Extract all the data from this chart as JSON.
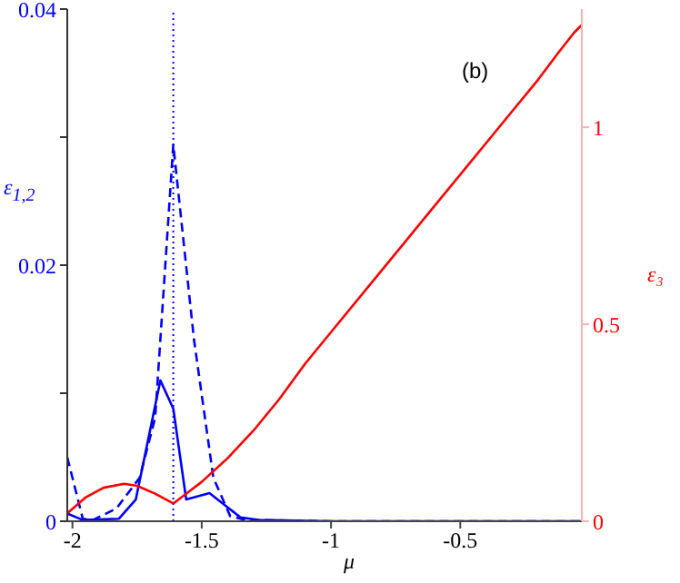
{
  "chart_data": {
    "type": "line",
    "xlabel": "μ",
    "ylabel": "ε$_{1,2}$",
    "y2label": "ε₃",
    "annotations": [
      "(b)"
    ],
    "xlim": [
      -2.02,
      -0.03
    ],
    "xticks": [
      -2,
      -1.5,
      -1,
      -0.5
    ],
    "ylim": [
      0,
      0.04
    ],
    "yticks": [
      0,
      {
        "value": 0.01,
        "label": null
      },
      0.02,
      {
        "value": 0.03,
        "label": null
      },
      0.04
    ],
    "y2lim": [
      0,
      1.3
    ],
    "y2ticks": [
      0,
      0.5,
      1
    ],
    "marker": "none",
    "ref_lines": [
      {
        "axis": "x",
        "value": -1.61,
        "label": null,
        "color": "#0000ff",
        "line_style": "dotted"
      }
    ],
    "series": [
      {
        "color": "#0000ff",
        "line_style": "solid",
        "x": [
          -2.02,
          -1.96,
          -1.82,
          -1.755,
          -1.66,
          -1.61,
          -1.56,
          -1.47,
          -1.35,
          -1.28,
          -1.0,
          -0.5,
          -0.03
        ],
        "values": [
          0.0006,
          0.0001,
          0.0002,
          0.0017,
          0.011,
          0.0088,
          0.0017,
          0.0022,
          0.0003,
          0.0001,
          0,
          0,
          0
        ]
      },
      {
        "color": "#0000ff",
        "line_style": "dashed",
        "x": [
          -2.02,
          -1.96,
          -1.92,
          -1.83,
          -1.74,
          -1.68,
          -1.61,
          -1.53,
          -1.455,
          -1.39,
          -1.33,
          -1.0,
          -0.5,
          -0.03
        ],
        "values": [
          0.005,
          0.0002,
          0.0001,
          0.001,
          0.0034,
          0.0081,
          0.0294,
          0.0142,
          0.0034,
          0.0004,
          0.0001,
          0,
          0,
          0
        ]
      },
      {
        "color": "#ff0000",
        "line_style": "solid",
        "axis": "y2",
        "x": [
          -2.02,
          -1.95,
          -1.88,
          -1.8,
          -1.75,
          -1.68,
          -1.61,
          -1.55,
          -1.5,
          -1.4,
          -1.3,
          -1.2,
          -1.1,
          -1.0,
          -0.8,
          -0.6,
          -0.4,
          -0.3,
          -0.2,
          -0.12,
          -0.06,
          -0.03
        ],
        "values": [
          0.02,
          0.06,
          0.085,
          0.095,
          0.09,
          0.07,
          0.045,
          0.075,
          0.1,
          0.16,
          0.23,
          0.31,
          0.4,
          0.48,
          0.64,
          0.8,
          0.96,
          1.04,
          1.12,
          1.19,
          1.24,
          1.26
        ]
      }
    ]
  }
}
